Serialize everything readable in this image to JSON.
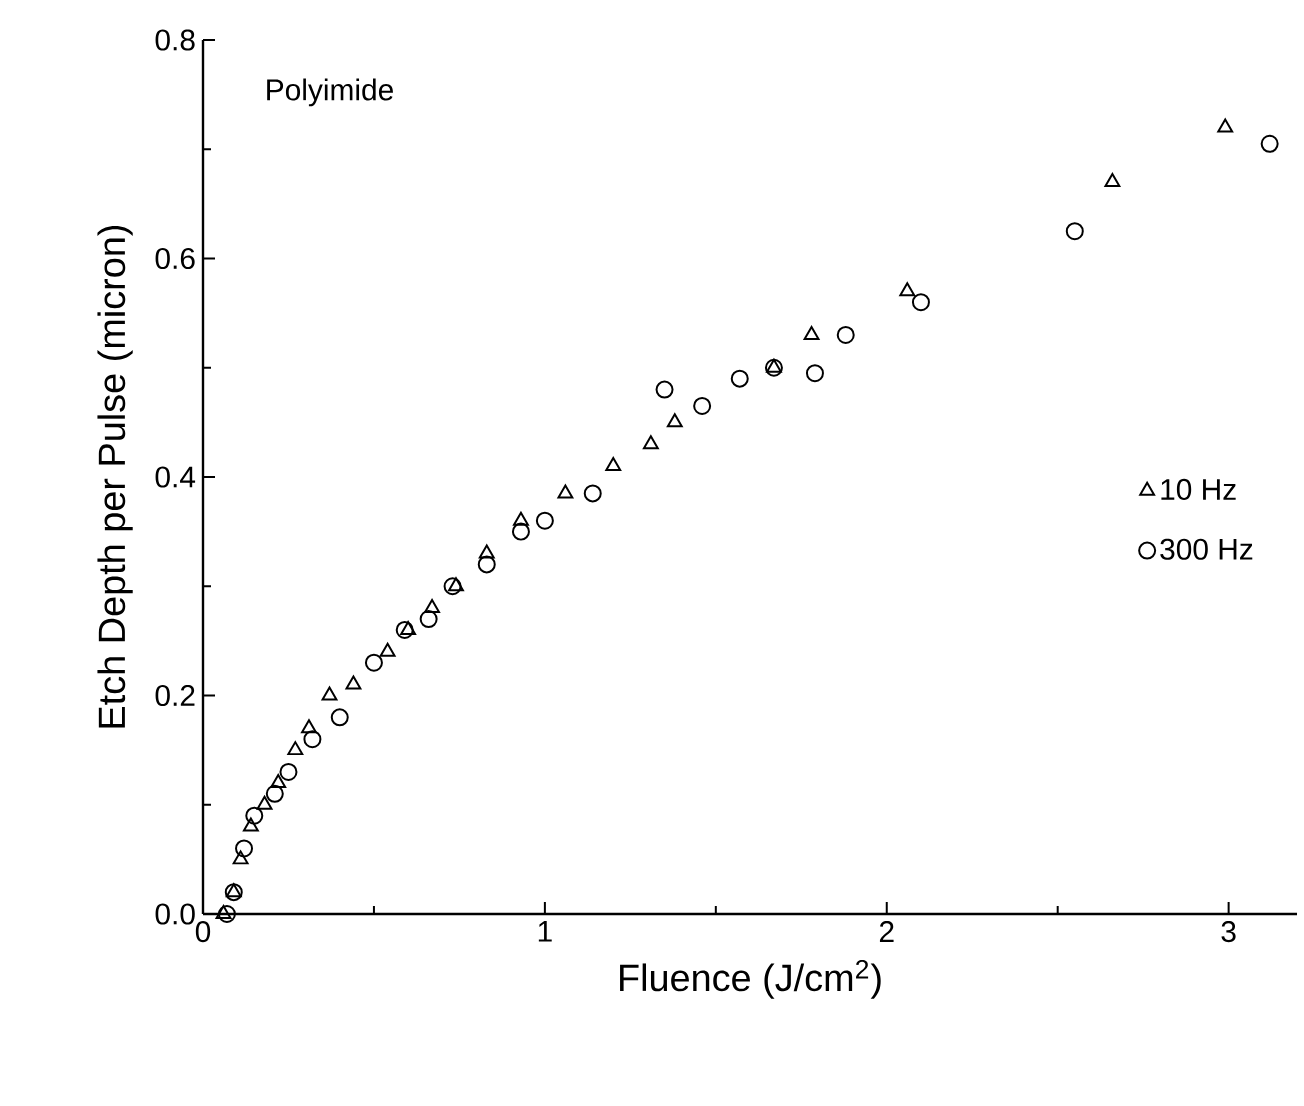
{
  "chart_data": {
    "type": "scatter",
    "xlabel": "Fluence (J/cm$^{2}$)",
    "ylabel": "Etch Depth per Pulse (micron)",
    "annotations": [
      "Polyimide"
    ],
    "xlim": [
      0,
      3.2
    ],
    "ylim": [
      0,
      0.8
    ],
    "xticks": [
      0,
      1,
      2,
      3
    ],
    "yticks": [
      {
        "value": 0,
        "label": "0.0"
      },
      0.2,
      0.4,
      0.6,
      0.8
    ],
    "grid": false,
    "legend": "right",
    "series": [
      {
        "name": "10 Hz",
        "color": "#000000",
        "marker": "triangle",
        "x": [
          0.06,
          0.09,
          0.11,
          0.14,
          0.18,
          0.22,
          0.27,
          0.31,
          0.37,
          0.44,
          0.54,
          0.6,
          0.67,
          0.74,
          0.83,
          0.93,
          1.06,
          1.2,
          1.31,
          1.38,
          1.67,
          1.78,
          2.06,
          2.66,
          2.99
        ],
        "values": [
          0.0,
          0.02,
          0.05,
          0.08,
          0.1,
          0.12,
          0.15,
          0.17,
          0.2,
          0.21,
          0.24,
          0.26,
          0.28,
          0.3,
          0.33,
          0.36,
          0.385,
          0.41,
          0.43,
          0.45,
          0.5,
          0.53,
          0.57,
          0.67,
          0.72
        ]
      },
      {
        "name": "300 Hz",
        "color": "#000000",
        "marker": "circle",
        "x": [
          0.07,
          0.09,
          0.12,
          0.15,
          0.21,
          0.25,
          0.32,
          0.4,
          0.5,
          0.59,
          0.66,
          0.73,
          0.83,
          0.93,
          1.0,
          1.14,
          1.35,
          1.46,
          1.57,
          1.67,
          1.79,
          1.88,
          2.1,
          2.55,
          3.12
        ],
        "values": [
          0.0,
          0.02,
          0.06,
          0.09,
          0.11,
          0.13,
          0.16,
          0.18,
          0.23,
          0.26,
          0.27,
          0.3,
          0.32,
          0.35,
          0.36,
          0.385,
          0.48,
          0.465,
          0.49,
          0.5,
          0.495,
          0.53,
          0.56,
          0.625,
          0.705
        ]
      }
    ]
  }
}
